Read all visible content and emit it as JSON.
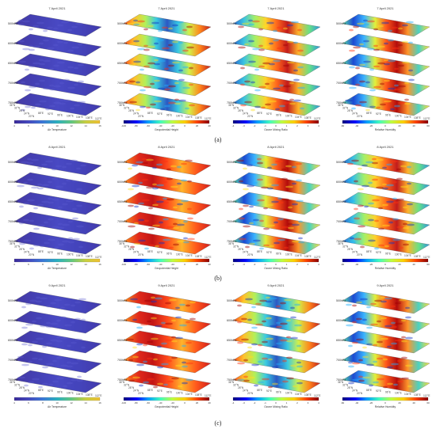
{
  "figure": {
    "rows": [
      {
        "label": "(a)",
        "date": "7 April 2021"
      },
      {
        "label": "(b)",
        "date": "8 April 2021"
      },
      {
        "label": "(c)",
        "date": "9 April 2021"
      }
    ],
    "columns": [
      {
        "variable": "Air Temperature",
        "unit": "°C",
        "colormap": "viridis-like"
      },
      {
        "variable": "Geopotential Height",
        "unit": "m",
        "colormap": "jet"
      },
      {
        "variable": "Ozone Mixing Ratio",
        "unit": "×10⁻⁸ mol/mol",
        "colormap": "jet"
      },
      {
        "variable": "Relative Humidity",
        "unit": "%",
        "colormap": "jet"
      }
    ],
    "pressure_levels": [
      "500hPa",
      "600hPa",
      "650hPa",
      "700hPa",
      "750hPa"
    ],
    "lat_ticks": [
      "36°N",
      "32°N",
      "28°N",
      "24°N",
      "20°N"
    ],
    "lon_ticks": [
      "16°E",
      "88°E",
      "92°E",
      "96°E",
      "100°E",
      "104°E",
      "108°E",
      "112°E"
    ],
    "colorbar_ticks": {
      "temperature": [
        "4",
        "6",
        "8",
        "10",
        "12",
        "14",
        "16"
      ],
      "geopotential": [
        "-100",
        "-80",
        "-60",
        "-40",
        "-20",
        "0",
        "20",
        "40"
      ],
      "ozone": [
        "-4",
        "-3",
        "-2",
        "-1",
        "0",
        "1",
        "2",
        "3",
        "4"
      ],
      "humidity": [
        "-60",
        "-40",
        "-20",
        "0",
        "20",
        "40",
        "60"
      ]
    }
  },
  "chart_data": [
    {
      "type": "heatmap",
      "title": "7 April 2021",
      "variable": "Air Temperature",
      "row": "(a)",
      "levels": [
        "500hPa",
        "600hPa",
        "650hPa",
        "700hPa",
        "750hPa"
      ],
      "colorbar": [
        4,
        16
      ]
    },
    {
      "type": "heatmap",
      "title": "7 April 2021",
      "variable": "Geopotential Height",
      "row": "(a)",
      "levels": [
        "500hPa",
        "600hPa",
        "650hPa",
        "700hPa",
        "750hPa"
      ],
      "colorbar": [
        -60,
        40
      ]
    },
    {
      "type": "heatmap",
      "title": "7 April 2021",
      "variable": "Ozone Mixing Ratio",
      "row": "(a)",
      "levels": [
        "500hPa",
        "600hPa",
        "650hPa",
        "700hPa",
        "750hPa"
      ],
      "colorbar": [
        -4,
        4
      ]
    },
    {
      "type": "heatmap",
      "title": "7 April 2021",
      "variable": "Relative Humidity",
      "row": "(a)",
      "levels": [
        "500hPa",
        "600hPa",
        "650hPa",
        "700hPa",
        "750hPa"
      ],
      "colorbar": [
        -60,
        60
      ]
    },
    {
      "type": "heatmap",
      "title": "8 April 2021",
      "variable": "Air Temperature",
      "row": "(b)",
      "levels": [
        "500hPa",
        "600hPa",
        "650hPa",
        "700hPa",
        "750hPa"
      ],
      "colorbar": [
        4,
        16
      ]
    },
    {
      "type": "heatmap",
      "title": "8 April 2021",
      "variable": "Geopotential Height",
      "row": "(b)",
      "levels": [
        "500hPa",
        "600hPa",
        "650hPa",
        "700hPa",
        "750hPa"
      ],
      "colorbar": [
        -100,
        40
      ]
    },
    {
      "type": "heatmap",
      "title": "8 April 2021",
      "variable": "Ozone Mixing Ratio",
      "row": "(b)",
      "levels": [
        "500hPa",
        "600hPa",
        "650hPa",
        "700hPa",
        "750hPa"
      ],
      "colorbar": [
        -4,
        4
      ]
    },
    {
      "type": "heatmap",
      "title": "8 April 2021",
      "variable": "Relative Humidity",
      "row": "(b)",
      "levels": [
        "500hPa",
        "600hPa",
        "650hPa",
        "700hPa",
        "750hPa"
      ],
      "colorbar": [
        -60,
        60
      ]
    },
    {
      "type": "heatmap",
      "title": "9 April 2021",
      "variable": "Air Temperature",
      "row": "(c)",
      "levels": [
        "500hPa",
        "600hPa",
        "650hPa",
        "700hPa",
        "750hPa"
      ],
      "colorbar": [
        4,
        16
      ]
    },
    {
      "type": "heatmap",
      "title": "9 April 2021",
      "variable": "Geopotential Height",
      "row": "(c)",
      "levels": [
        "500hPa",
        "600hPa",
        "650hPa",
        "700hPa",
        "750hPa"
      ],
      "colorbar": [
        -100,
        40
      ]
    },
    {
      "type": "heatmap",
      "title": "9 April 2021",
      "variable": "Ozone Mixing Ratio",
      "row": "(c)",
      "levels": [
        "500hPa",
        "600hPa",
        "650hPa",
        "700hPa",
        "750hPa"
      ],
      "colorbar": [
        -4,
        4
      ]
    },
    {
      "type": "heatmap",
      "title": "9 April 2021",
      "variable": "Relative Humidity",
      "row": "(c)",
      "levels": [
        "500hPa",
        "600hPa",
        "650hPa",
        "700hPa",
        "750hPa"
      ],
      "colorbar": [
        -60,
        60
      ]
    }
  ]
}
